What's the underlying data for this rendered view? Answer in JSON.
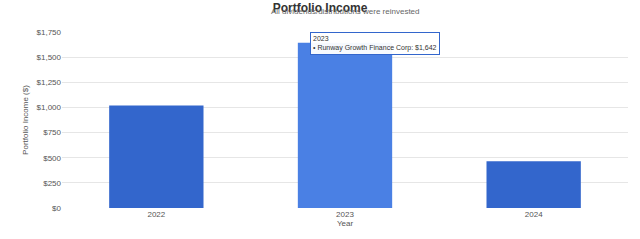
{
  "chart_data": {
    "type": "bar",
    "title": "Portfolio Income",
    "subtitle": "All dividends/distributions were reinvested",
    "x_label": "Year",
    "y_label": "Portfolio Income ($)",
    "categories": [
      "2022",
      "2023",
      "2024"
    ],
    "values": [
      1020,
      1642,
      465
    ],
    "colors": [
      "#3366cc",
      "#4a80e4",
      "#3366cc"
    ],
    "ylim": [
      0,
      1750
    ],
    "yticks": [
      {
        "value": 0,
        "label": "$0"
      },
      {
        "value": 250,
        "label": "$250"
      },
      {
        "value": 500,
        "label": "$500"
      },
      {
        "value": 750,
        "label": "$750"
      },
      {
        "value": 1000,
        "label": "$1,000"
      },
      {
        "value": 1250,
        "label": "$1,250"
      },
      {
        "value": 1500,
        "label": "$1,500"
      },
      {
        "value": 1750,
        "label": "$1,750"
      }
    ],
    "grid": true,
    "annotations": [
      {
        "category": "2023",
        "lines": [
          "2023",
          "• Runway Growth Finance Corp: $1,642"
        ]
      }
    ]
  }
}
